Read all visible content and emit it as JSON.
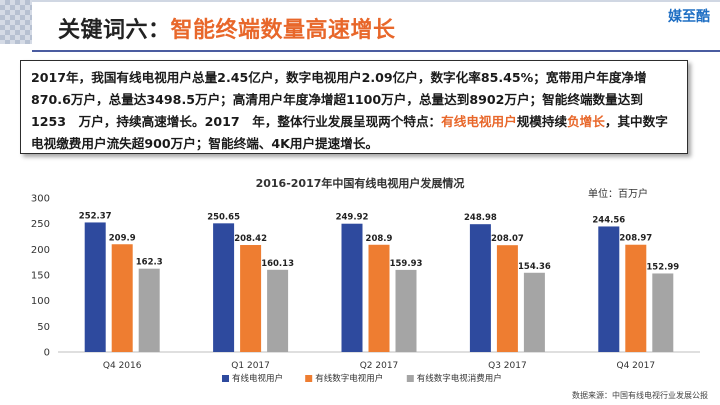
{
  "header": {
    "title_prefix": "关键词六：",
    "title_suffix": "智能终端数量高速增长",
    "logo": "媒至酷"
  },
  "summary": {
    "part1": "2017年，我国有线电视用户总量2.45亿户，数字电视用户2.09亿户，数字化率85.45%；宽带用户年度净增870.6万户，总量达3498.5万户；高清用户年度净增超1100万户，总量达到8902万户；智能终端数量达到1253　万户，持续高速增长。2017　年，整体行业发展呈现两个特点：",
    "hl1": "有线电视用户",
    "part2": "规模持续",
    "hl2": "负增长",
    "part3": "，其中数字电视缴费用户流失超900万户；智能终端、4K用户提速增长。"
  },
  "colors": {
    "series1": "#2e4a9e",
    "series2": "#ee7d31",
    "series3": "#a5a5a5",
    "accent": "#e8672a"
  },
  "chart_data": {
    "type": "bar",
    "title": "2016-2017年中国有线电视用户发展情况",
    "unit": "单位：百万户",
    "source": "数据来源：中国有线电视行业发展公报",
    "categories": [
      "Q4 2016",
      "Q1 2017",
      "Q2 2017",
      "Q3 2017",
      "Q4 2017"
    ],
    "series": [
      {
        "name": "有线电视用户",
        "values": [
          252.37,
          250.65,
          249.92,
          248.98,
          244.56
        ]
      },
      {
        "name": "有线数字电视用户",
        "values": [
          209.9,
          208.42,
          208.9,
          208.07,
          208.97
        ]
      },
      {
        "name": "有线数字电视消费用户",
        "values": [
          162.3,
          160.13,
          159.93,
          154.36,
          152.99
        ]
      }
    ],
    "yticks": [
      0,
      50,
      100,
      150,
      200,
      250,
      300
    ],
    "ylim": [
      0,
      300
    ],
    "legend_position": "bottom",
    "grid": false
  }
}
